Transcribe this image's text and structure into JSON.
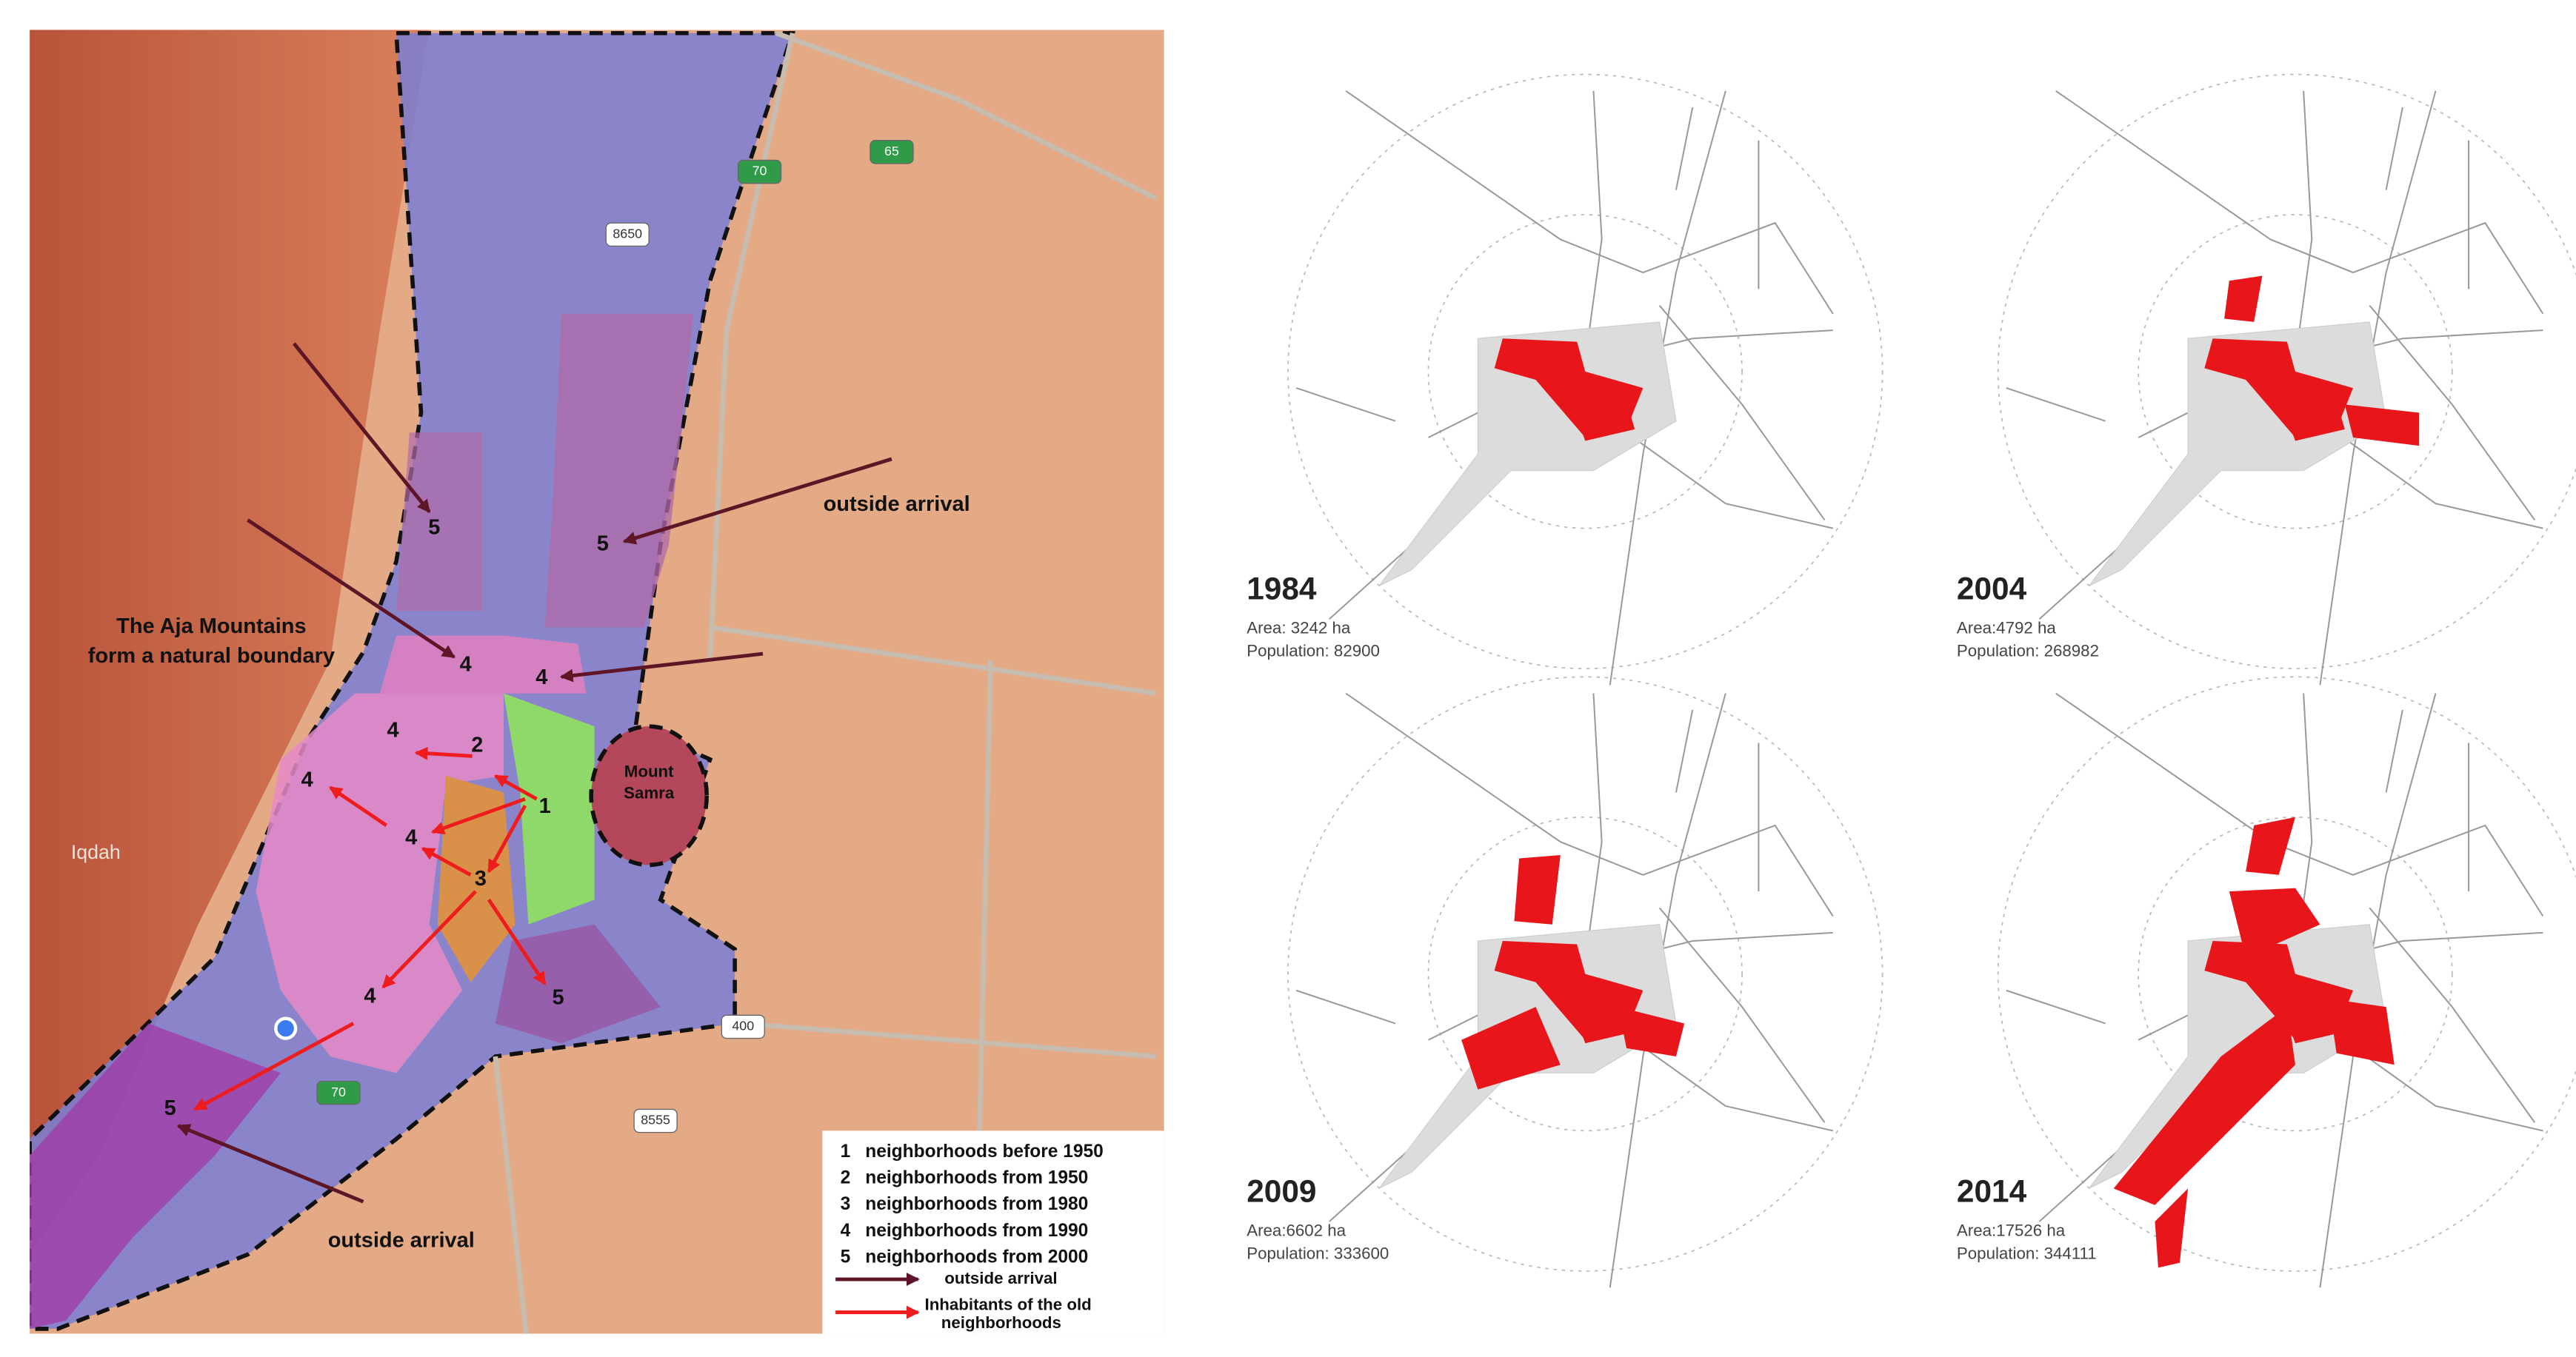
{
  "map": {
    "boundary_caption": [
      "The Aja Mountains",
      "form a natural boundary"
    ],
    "mount_samra": [
      "Mount",
      "Samra"
    ],
    "place_label": "Iqdah",
    "arrival_captions": [
      "outside arrival",
      "outside arrival"
    ],
    "neighborhood_markers": [
      "5",
      "5",
      "4",
      "4",
      "4",
      "2",
      "4",
      "1",
      "4",
      "3",
      "4",
      "5",
      "5"
    ],
    "road_labels": [
      "70",
      "65",
      "8650",
      "8555",
      "400",
      "70"
    ],
    "legend": {
      "entries": [
        {
          "number": "1",
          "text": "neighborhoods before 1950"
        },
        {
          "number": "2",
          "text": "neighborhoods from 1950"
        },
        {
          "number": "3",
          "text": "neighborhoods from 1980"
        },
        {
          "number": "4",
          "text": "neighborhoods from 1990"
        },
        {
          "number": "5",
          "text": "neighborhoods from 2000"
        }
      ],
      "outside_arrival": "outside arrival",
      "old_inhabitants": [
        "Inhabitants of the old",
        "neighborhoods"
      ]
    }
  },
  "panels": [
    {
      "year": "1984",
      "area": "Area: 3242 ha",
      "population": "Population: 82900"
    },
    {
      "year": "2004",
      "area": "Area:4792 ha",
      "population": "Population: 268982"
    },
    {
      "year": "2009",
      "area": "Area:6602 ha",
      "population": "Population: 333600"
    },
    {
      "year": "2014",
      "area": "Area:17526 ha",
      "population": "Population: 344111"
    }
  ]
}
